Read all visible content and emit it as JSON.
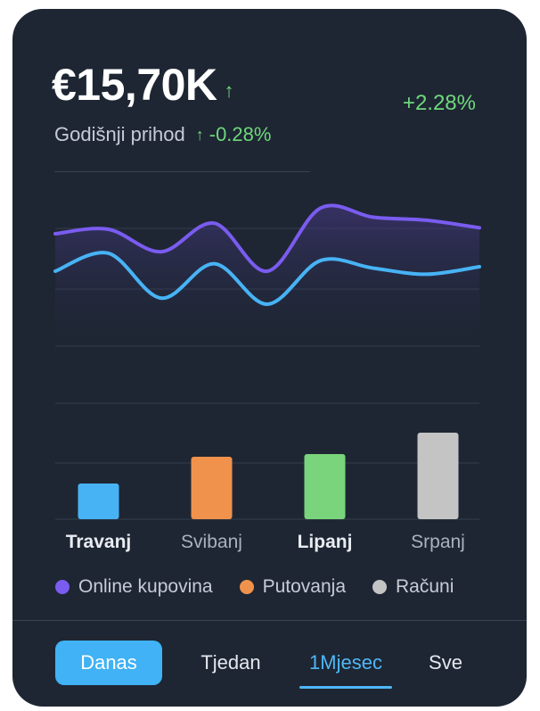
{
  "summary": {
    "value": "€15,70K",
    "value_arrow": "↑",
    "change": "+2.28%",
    "label": "Godišnji prihod",
    "label_arrow": "↑",
    "label_change": "-0.28%"
  },
  "colors": {
    "card": "#1e2633",
    "purple": "#7a5cf0",
    "blue": "#47b3f5",
    "orange": "#f0924c",
    "green": "#79d47b",
    "gray": "#c4c4c4",
    "positive": "#6fd87c"
  },
  "chart_data": [
    {
      "type": "area",
      "x": [
        0,
        1,
        2,
        3,
        4,
        5,
        6,
        7,
        8
      ],
      "series": [
        {
          "values": [
            75,
            78,
            63,
            82,
            50,
            92,
            86,
            84,
            79
          ]
        },
        {
          "values": [
            50,
            62,
            32,
            55,
            28,
            57,
            52,
            48,
            53
          ]
        }
      ],
      "ylim": [
        0,
        100
      ],
      "grid": true
    },
    {
      "type": "bar",
      "categories": [
        "Travanj",
        "Svibanj",
        "Lipanj",
        "Srpanj"
      ],
      "values": [
        40,
        70,
        73,
        97
      ],
      "ylim": [
        0,
        130
      ],
      "grid": true
    }
  ],
  "months": [
    {
      "label": "Travanj",
      "bold": true
    },
    {
      "label": "Svibanj",
      "bold": false
    },
    {
      "label": "Lipanj",
      "bold": true
    },
    {
      "label": "Srpanj",
      "bold": false
    }
  ],
  "legend": [
    {
      "label": "Online kupovina",
      "color": "#7a5cf0"
    },
    {
      "label": "Putovanja",
      "color": "#f0924c"
    },
    {
      "label": "Računi",
      "color": "#c4c4c4"
    }
  ],
  "tabs": [
    {
      "label": "Danas",
      "state": "pill"
    },
    {
      "label": "Tjedan",
      "state": "none"
    },
    {
      "label": "1Mjesec",
      "state": "underline"
    },
    {
      "label": "Sve",
      "state": "none"
    }
  ]
}
